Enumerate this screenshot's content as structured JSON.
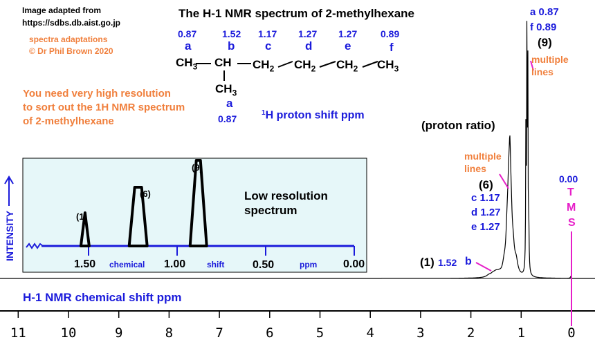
{
  "header": {
    "credit_line1": "Image adapted from",
    "credit_line2": "https://sdbs.db.aist.go.jp",
    "adapt_line1": "spectra adaptations",
    "adapt_line2": "© Dr Phil Brown 2020",
    "title": "The H-1 NMR spectrum of 2-methylhexane"
  },
  "note": {
    "line1": "You need very high resolution",
    "line2": "to sort out the 1H NMR spectrum",
    "line3": "of 2-methylhexane"
  },
  "structure": {
    "groups": [
      {
        "shift": "0.87",
        "letter": "a",
        "formula": "CH3"
      },
      {
        "shift": "1.52",
        "letter": "b",
        "formula": "CH"
      },
      {
        "shift": "1.17",
        "letter": "c",
        "formula": "CH2"
      },
      {
        "shift": "1.27",
        "letter": "d",
        "formula": "CH2"
      },
      {
        "shift": "1.27",
        "letter": "e",
        "formula": "CH2"
      },
      {
        "shift": "0.89",
        "letter": "f",
        "formula": "CH3"
      }
    ],
    "branch": {
      "formula": "CH3",
      "letter": "a",
      "shift": "0.87"
    },
    "caption_sup": "1",
    "caption": "H proton shift  ppm"
  },
  "labels": {
    "proton_ratio": "(proton ratio)",
    "intensity": "INTENSITY",
    "xaxis_title": "H-1 NMR chemical shift  ppm",
    "peak_af": {
      "a": "a 0.87",
      "f": "f 0.89",
      "ratio": "(9)",
      "note1": "multiple",
      "note2": "lines"
    },
    "peak_cde": {
      "note1": "multiple",
      "note2": "lines",
      "ratio": "(6)",
      "c": "c 1.17",
      "d": "d 1.27",
      "e": "e 1.27"
    },
    "peak_b": {
      "ratio": "(1)",
      "shift": "1.52",
      "letter": "b"
    },
    "tms": {
      "shift": "0.00",
      "letters": [
        "T",
        "M",
        "S"
      ]
    }
  },
  "inset": {
    "title_line1": "Low resolution",
    "title_line2": "spectrum",
    "peak_labels": [
      "(1)",
      "(6)",
      "(9)"
    ],
    "tick_labels": [
      "1.50",
      "1.00",
      "0.50",
      "0.00"
    ],
    "axis_words": [
      "chemical",
      "shift",
      "ppm"
    ]
  },
  "chart_data": {
    "type": "line",
    "xlabel": "H-1 NMR chemical shift  ppm",
    "ylabel": "INTENSITY",
    "xlim": [
      11,
      0
    ],
    "x_ticks": [
      11,
      10,
      9,
      8,
      7,
      6,
      5,
      4,
      3,
      2,
      1,
      0
    ],
    "peaks": [
      {
        "group": "b",
        "shift_ppm": 1.52,
        "ratio": 1
      },
      {
        "group": "c,d,e",
        "shift_ppm": 1.22,
        "ratio": 6
      },
      {
        "group": "a,f",
        "shift_ppm": 0.88,
        "ratio": 9
      },
      {
        "group": "TMS",
        "shift_ppm": 0.0
      }
    ],
    "inset": {
      "xlim": [
        1.7,
        -0.02
      ],
      "x_ticks": [
        1.5,
        1.0,
        0.5,
        0.0
      ],
      "peaks": [
        {
          "shift_ppm": 1.52,
          "ratio": 1
        },
        {
          "shift_ppm": 1.22,
          "ratio": 6
        },
        {
          "shift_ppm": 0.88,
          "ratio": 9
        }
      ]
    }
  }
}
